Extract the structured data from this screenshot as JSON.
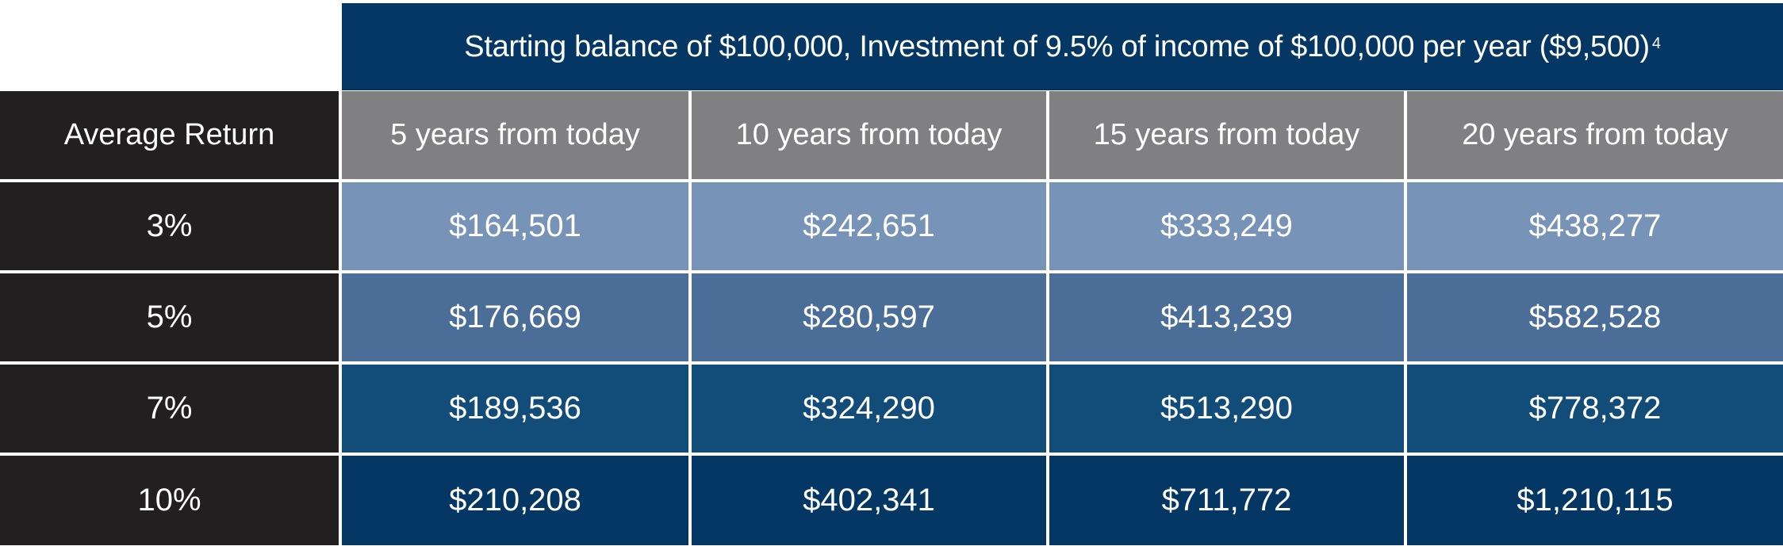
{
  "chart_data": {
    "type": "table",
    "title": "Starting balance of $100,000, Investment of 9.5% of income of $100,000 per year ($9,500)",
    "title_footnote": "4",
    "row_header_label": "Average Return",
    "columns": [
      "5 years from today",
      "10 years from today",
      "15 years from today",
      "20 years from today"
    ],
    "rows": [
      {
        "label": "3%",
        "values": [
          "$164,501",
          "$242,651",
          "$333,249",
          "$438,277"
        ]
      },
      {
        "label": "5%",
        "values": [
          "$176,669",
          "$280,597",
          "$413,239",
          "$582,528"
        ]
      },
      {
        "label": "7%",
        "values": [
          "$189,536",
          "$324,290",
          "$513,290",
          "$778,372"
        ]
      },
      {
        "label": "10%",
        "values": [
          "$210,208",
          "$402,341",
          "$711,772",
          "$1,210,115"
        ]
      }
    ],
    "colors": {
      "title_bg": "#043764",
      "row_header_bg": "#221f20",
      "column_header_bg": "#808083",
      "row_bgs": [
        "#7893b8",
        "#4a6e97",
        "#124c79",
        "#043764"
      ],
      "text": "#ffffff"
    }
  }
}
